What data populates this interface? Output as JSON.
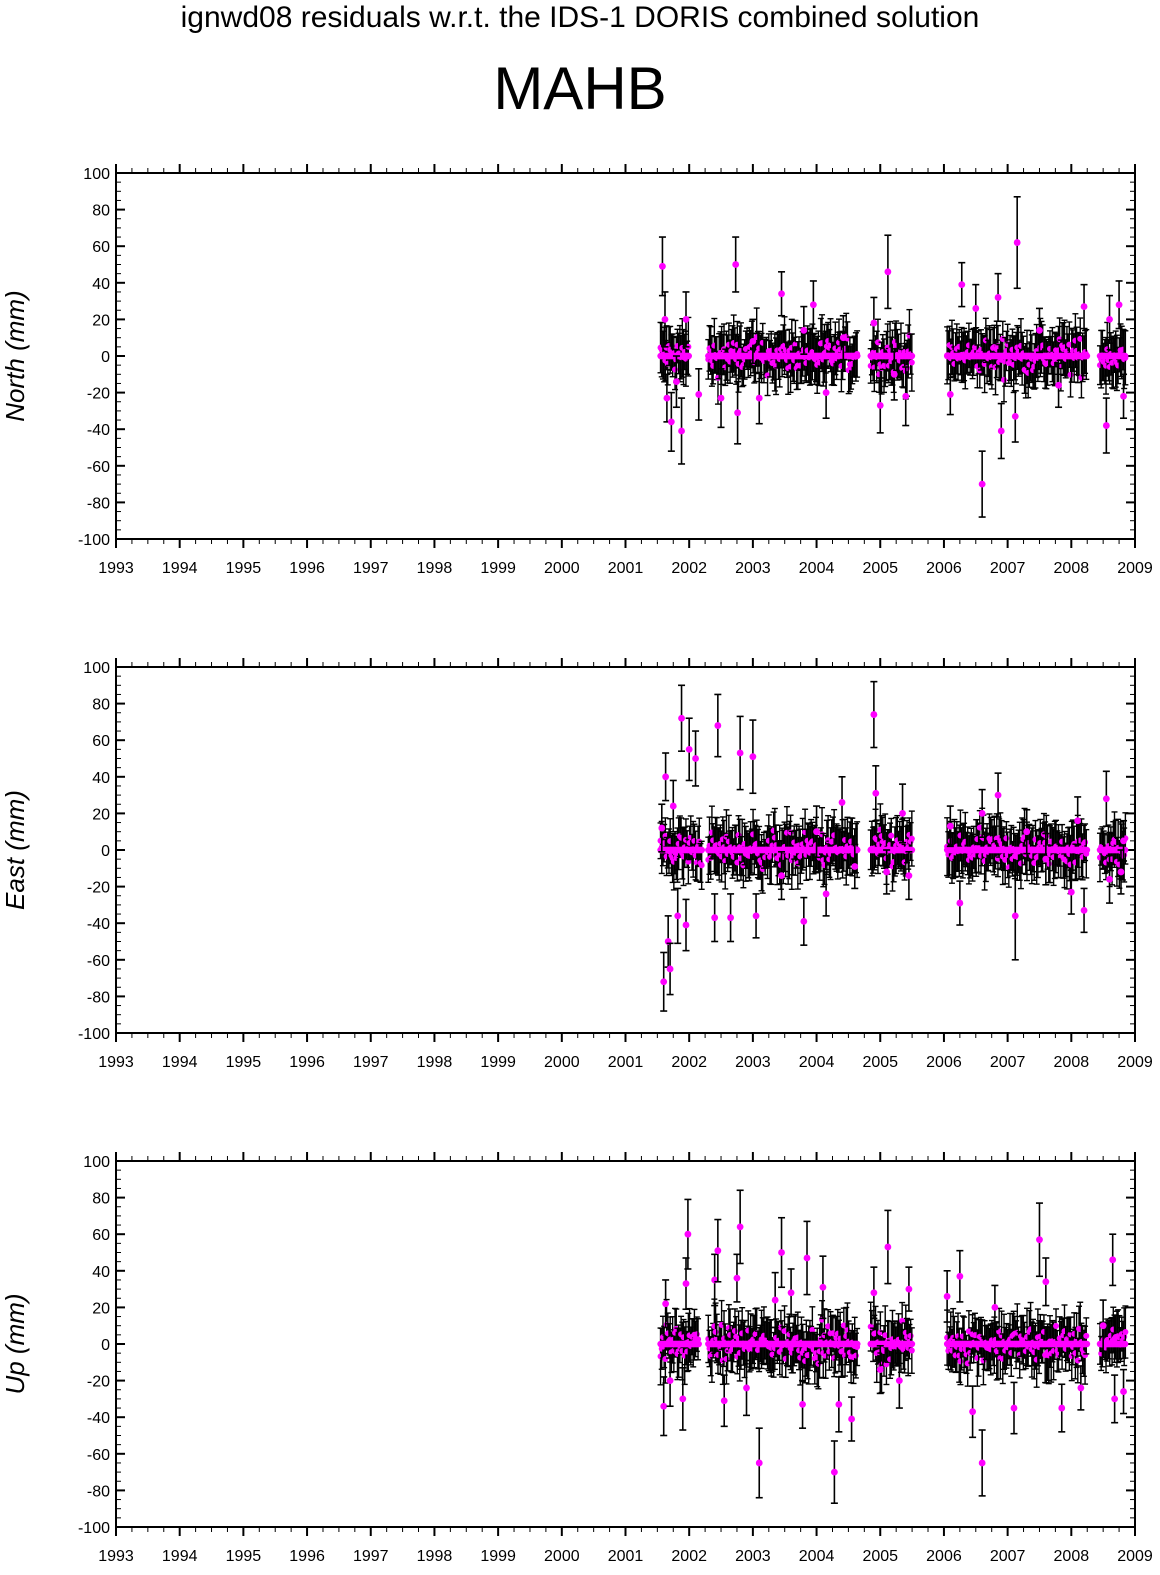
{
  "figure": {
    "title": "ignwd08 residuals w.r.t. the IDS-1 DORIS combined solution",
    "station": "MAHB"
  },
  "colors": {
    "point": "#ff00ff",
    "errorbar": "#000000",
    "axis": "#000000"
  },
  "chart_data": [
    {
      "type": "scatter",
      "panel": "north",
      "ylabel": "North (mm)",
      "xlim": [
        1993,
        2009
      ],
      "ylim": [
        -100,
        100
      ],
      "x_ticks": [
        1993,
        1994,
        1995,
        1996,
        1997,
        1998,
        1999,
        2000,
        2001,
        2002,
        2003,
        2004,
        2005,
        2006,
        2007,
        2008,
        2009
      ],
      "y_ticks": [
        -100,
        -80,
        -60,
        -40,
        -20,
        0,
        20,
        40,
        60,
        80,
        100
      ],
      "error_bars": true,
      "data_spans": [
        [
          2001.55,
          2002.0
        ],
        [
          2002.3,
          2004.65
        ],
        [
          2004.85,
          2005.5
        ],
        [
          2006.05,
          2008.25
        ],
        [
          2008.45,
          2008.85
        ]
      ],
      "series": [
        {
          "points": [
            {
              "x": 2001.58,
              "y": 49,
              "err": 16
            },
            {
              "x": 2001.62,
              "y": 20,
              "err": 15
            },
            {
              "x": 2001.65,
              "y": -23,
              "err": 13
            },
            {
              "x": 2001.72,
              "y": -36,
              "err": 16
            },
            {
              "x": 2001.8,
              "y": -14,
              "err": 14
            },
            {
              "x": 2001.88,
              "y": -41,
              "err": 18
            },
            {
              "x": 2001.95,
              "y": 20,
              "err": 15
            },
            {
              "x": 2002.15,
              "y": -21,
              "err": 14
            },
            {
              "x": 2002.5,
              "y": -23,
              "err": 16
            },
            {
              "x": 2002.73,
              "y": 50,
              "err": 15
            },
            {
              "x": 2002.76,
              "y": -31,
              "err": 17
            },
            {
              "x": 2003.0,
              "y": 8,
              "err": 12
            },
            {
              "x": 2003.1,
              "y": -23,
              "err": 14
            },
            {
              "x": 2003.45,
              "y": 34,
              "err": 12
            },
            {
              "x": 2003.8,
              "y": 14,
              "err": 13
            },
            {
              "x": 2003.95,
              "y": 28,
              "err": 13
            },
            {
              "x": 2004.15,
              "y": -20,
              "err": 14
            },
            {
              "x": 2004.42,
              "y": 10,
              "err": 12
            },
            {
              "x": 2004.9,
              "y": 18,
              "err": 14
            },
            {
              "x": 2005.0,
              "y": -27,
              "err": 15
            },
            {
              "x": 2005.12,
              "y": 46,
              "err": 20
            },
            {
              "x": 2005.22,
              "y": -10,
              "err": 14
            },
            {
              "x": 2005.4,
              "y": -22,
              "err": 16
            },
            {
              "x": 2006.1,
              "y": -21,
              "err": 11
            },
            {
              "x": 2006.28,
              "y": 39,
              "err": 12
            },
            {
              "x": 2006.5,
              "y": 26,
              "err": 13
            },
            {
              "x": 2006.6,
              "y": -70,
              "err": 18
            },
            {
              "x": 2006.85,
              "y": 32,
              "err": 13
            },
            {
              "x": 2006.9,
              "y": -41,
              "err": 15
            },
            {
              "x": 2007.12,
              "y": -33,
              "err": 14
            },
            {
              "x": 2007.15,
              "y": 62,
              "err": 25
            },
            {
              "x": 2007.5,
              "y": 14,
              "err": 12
            },
            {
              "x": 2007.8,
              "y": -16,
              "err": 12
            },
            {
              "x": 2008.2,
              "y": 27,
              "err": 12
            },
            {
              "x": 2008.55,
              "y": -38,
              "err": 15
            },
            {
              "x": 2008.6,
              "y": 20,
              "err": 13
            },
            {
              "x": 2008.75,
              "y": 28,
              "err": 13
            },
            {
              "x": 2008.82,
              "y": -22,
              "err": 12
            }
          ]
        }
      ]
    },
    {
      "type": "scatter",
      "panel": "east",
      "ylabel": "East (mm)",
      "xlim": [
        1993,
        2009
      ],
      "ylim": [
        -100,
        100
      ],
      "x_ticks": [
        1993,
        1994,
        1995,
        1996,
        1997,
        1998,
        1999,
        2000,
        2001,
        2002,
        2003,
        2004,
        2005,
        2006,
        2007,
        2008,
        2009
      ],
      "y_ticks": [
        -100,
        -80,
        -60,
        -40,
        -20,
        0,
        20,
        40,
        60,
        80,
        100
      ],
      "error_bars": true,
      "data_spans": [
        [
          2001.55,
          2002.2
        ],
        [
          2002.3,
          2004.65
        ],
        [
          2004.85,
          2005.5
        ],
        [
          2006.05,
          2008.25
        ],
        [
          2008.45,
          2008.85
        ]
      ],
      "series": [
        {
          "points": [
            {
              "x": 2001.57,
              "y": 12,
              "err": 13
            },
            {
              "x": 2001.6,
              "y": -72,
              "err": 16
            },
            {
              "x": 2001.63,
              "y": 40,
              "err": 13
            },
            {
              "x": 2001.67,
              "y": -50,
              "err": 14
            },
            {
              "x": 2001.7,
              "y": -65,
              "err": 14
            },
            {
              "x": 2001.75,
              "y": 24,
              "err": 14
            },
            {
              "x": 2001.82,
              "y": -36,
              "err": 15
            },
            {
              "x": 2001.88,
              "y": 72,
              "err": 18
            },
            {
              "x": 2001.95,
              "y": -41,
              "err": 14
            },
            {
              "x": 2002.0,
              "y": 55,
              "err": 17
            },
            {
              "x": 2002.1,
              "y": 50,
              "err": 15
            },
            {
              "x": 2002.4,
              "y": -37,
              "err": 13
            },
            {
              "x": 2002.45,
              "y": 68,
              "err": 17
            },
            {
              "x": 2002.65,
              "y": -37,
              "err": 13
            },
            {
              "x": 2002.8,
              "y": 53,
              "err": 20
            },
            {
              "x": 2003.0,
              "y": 51,
              "err": 20
            },
            {
              "x": 2003.05,
              "y": -36,
              "err": 12
            },
            {
              "x": 2003.45,
              "y": -14,
              "err": 13
            },
            {
              "x": 2003.8,
              "y": -39,
              "err": 13
            },
            {
              "x": 2004.0,
              "y": 10,
              "err": 14
            },
            {
              "x": 2004.15,
              "y": -24,
              "err": 12
            },
            {
              "x": 2004.4,
              "y": 26,
              "err": 14
            },
            {
              "x": 2004.6,
              "y": -9,
              "err": 12
            },
            {
              "x": 2004.9,
              "y": 74,
              "err": 18
            },
            {
              "x": 2004.93,
              "y": 31,
              "err": 15
            },
            {
              "x": 2005.1,
              "y": -12,
              "err": 12
            },
            {
              "x": 2005.35,
              "y": 20,
              "err": 16
            },
            {
              "x": 2005.45,
              "y": -14,
              "err": 13
            },
            {
              "x": 2006.1,
              "y": 13,
              "err": 11
            },
            {
              "x": 2006.25,
              "y": -29,
              "err": 12
            },
            {
              "x": 2006.6,
              "y": 20,
              "err": 13
            },
            {
              "x": 2006.85,
              "y": 30,
              "err": 12
            },
            {
              "x": 2007.12,
              "y": -36,
              "err": 24
            },
            {
              "x": 2007.3,
              "y": 10,
              "err": 12
            },
            {
              "x": 2007.6,
              "y": -5,
              "err": 14
            },
            {
              "x": 2008.0,
              "y": -23,
              "err": 12
            },
            {
              "x": 2008.1,
              "y": 16,
              "err": 13
            },
            {
              "x": 2008.2,
              "y": -33,
              "err": 12
            },
            {
              "x": 2008.55,
              "y": 28,
              "err": 15
            },
            {
              "x": 2008.6,
              "y": -16,
              "err": 13
            },
            {
              "x": 2008.78,
              "y": -12,
              "err": 12
            },
            {
              "x": 2008.82,
              "y": 5,
              "err": 11
            }
          ]
        }
      ]
    },
    {
      "type": "scatter",
      "panel": "up",
      "ylabel": "Up (mm)",
      "xlim": [
        1993,
        2009
      ],
      "ylim": [
        -100,
        100
      ],
      "x_ticks": [
        1993,
        1994,
        1995,
        1996,
        1997,
        1998,
        1999,
        2000,
        2001,
        2002,
        2003,
        2004,
        2005,
        2006,
        2007,
        2008,
        2009
      ],
      "y_ticks": [
        -100,
        -80,
        -60,
        -40,
        -20,
        0,
        20,
        40,
        60,
        80,
        100
      ],
      "error_bars": true,
      "data_spans": [
        [
          2001.55,
          2002.15
        ],
        [
          2002.3,
          2004.65
        ],
        [
          2004.85,
          2005.5
        ],
        [
          2006.05,
          2008.25
        ],
        [
          2008.45,
          2008.85
        ]
      ],
      "series": [
        {
          "points": [
            {
              "x": 2001.6,
              "y": -34,
              "err": 16
            },
            {
              "x": 2001.63,
              "y": 22,
              "err": 13
            },
            {
              "x": 2001.7,
              "y": -20,
              "err": 14
            },
            {
              "x": 2001.9,
              "y": -30,
              "err": 17
            },
            {
              "x": 2001.95,
              "y": 33,
              "err": 14
            },
            {
              "x": 2001.98,
              "y": 60,
              "err": 19
            },
            {
              "x": 2002.4,
              "y": 35,
              "err": 14
            },
            {
              "x": 2002.45,
              "y": 51,
              "err": 17
            },
            {
              "x": 2002.55,
              "y": -31,
              "err": 14
            },
            {
              "x": 2002.75,
              "y": 36,
              "err": 13
            },
            {
              "x": 2002.8,
              "y": 64,
              "err": 20
            },
            {
              "x": 2002.9,
              "y": -24,
              "err": 15
            },
            {
              "x": 2003.1,
              "y": -65,
              "err": 19
            },
            {
              "x": 2003.35,
              "y": 24,
              "err": 15
            },
            {
              "x": 2003.45,
              "y": 50,
              "err": 19
            },
            {
              "x": 2003.6,
              "y": 28,
              "err": 13
            },
            {
              "x": 2003.78,
              "y": -33,
              "err": 13
            },
            {
              "x": 2003.85,
              "y": 47,
              "err": 20
            },
            {
              "x": 2004.1,
              "y": 31,
              "err": 17
            },
            {
              "x": 2004.28,
              "y": -70,
              "err": 17
            },
            {
              "x": 2004.35,
              "y": -33,
              "err": 15
            },
            {
              "x": 2004.55,
              "y": -41,
              "err": 12
            },
            {
              "x": 2004.9,
              "y": 28,
              "err": 14
            },
            {
              "x": 2005.0,
              "y": -14,
              "err": 13
            },
            {
              "x": 2005.12,
              "y": 53,
              "err": 20
            },
            {
              "x": 2005.3,
              "y": -20,
              "err": 15
            },
            {
              "x": 2005.45,
              "y": 30,
              "err": 12
            },
            {
              "x": 2006.05,
              "y": 26,
              "err": 14
            },
            {
              "x": 2006.25,
              "y": 37,
              "err": 14
            },
            {
              "x": 2006.45,
              "y": -37,
              "err": 14
            },
            {
              "x": 2006.6,
              "y": -65,
              "err": 18
            },
            {
              "x": 2006.8,
              "y": 20,
              "err": 12
            },
            {
              "x": 2007.1,
              "y": -35,
              "err": 14
            },
            {
              "x": 2007.5,
              "y": 57,
              "err": 20
            },
            {
              "x": 2007.6,
              "y": 34,
              "err": 13
            },
            {
              "x": 2007.85,
              "y": -35,
              "err": 13
            },
            {
              "x": 2008.15,
              "y": -24,
              "err": 12
            },
            {
              "x": 2008.5,
              "y": 10,
              "err": 14
            },
            {
              "x": 2008.65,
              "y": 46,
              "err": 14
            },
            {
              "x": 2008.68,
              "y": -30,
              "err": 13
            },
            {
              "x": 2008.82,
              "y": -26,
              "err": 12
            }
          ]
        }
      ]
    }
  ]
}
